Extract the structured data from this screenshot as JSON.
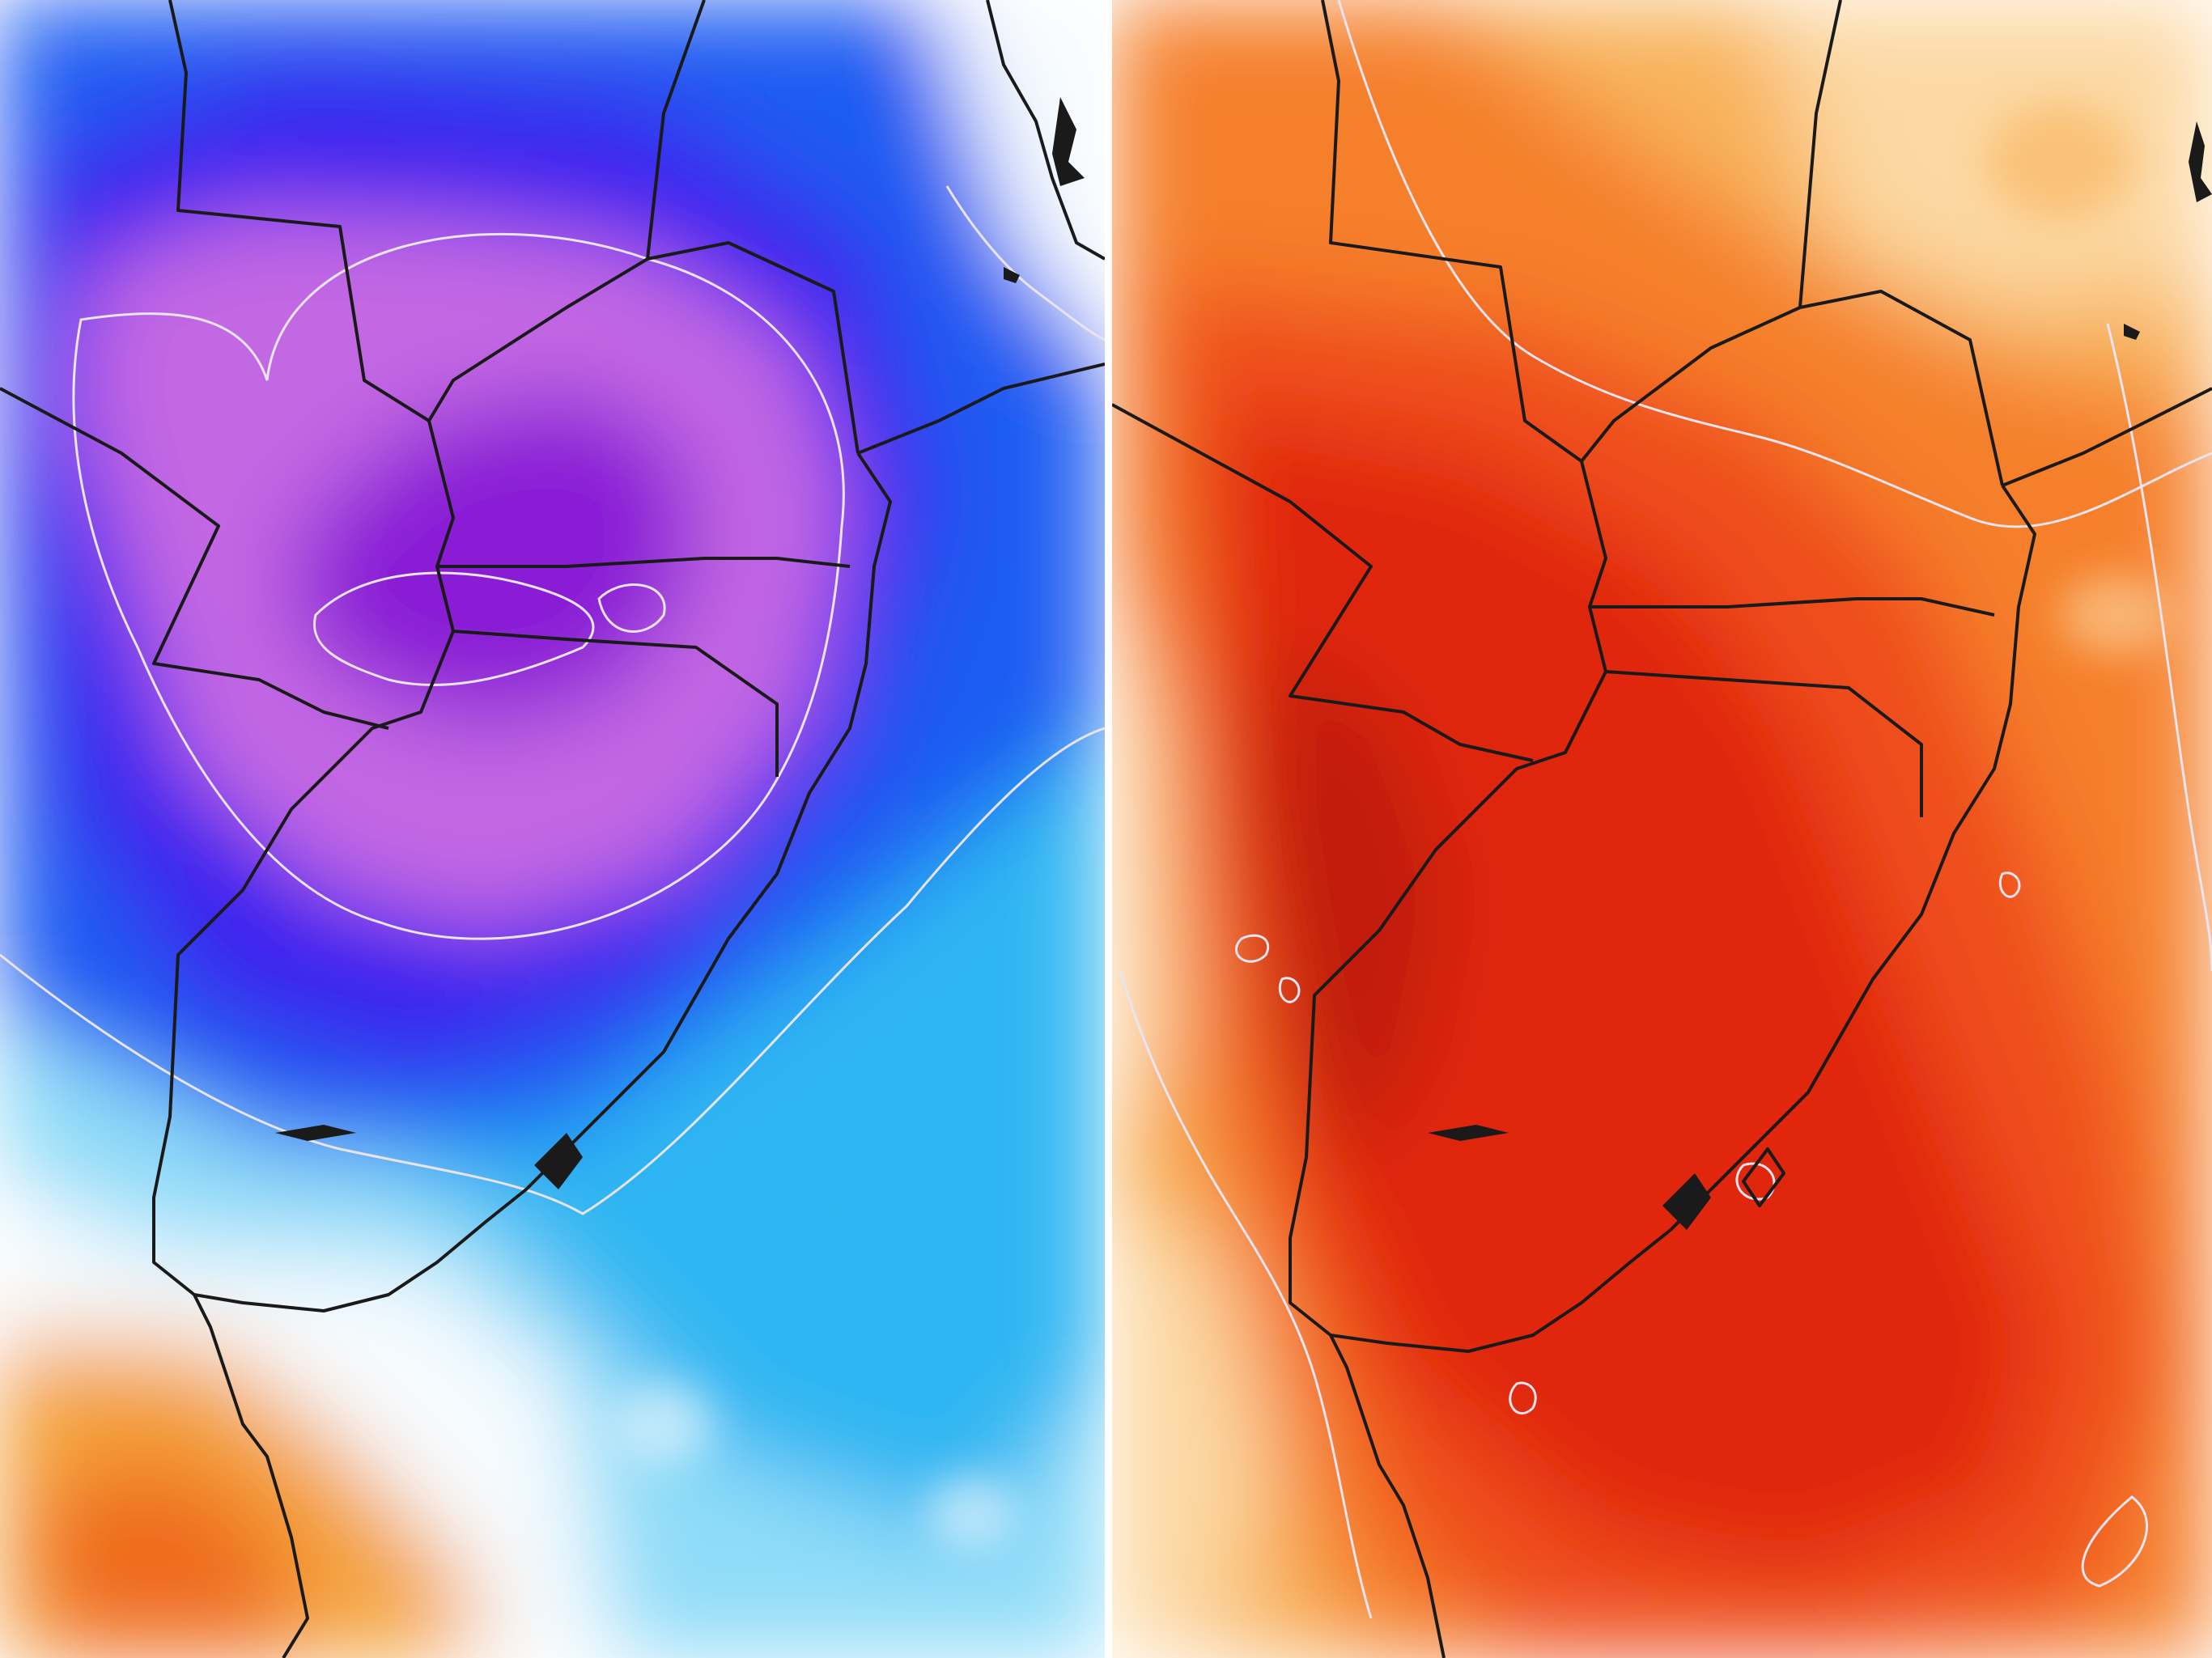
{
  "panels": [
    {
      "id": "left",
      "field": "temperature-anomaly-cold",
      "palette": {
        "deep_purple": "#8a1fd6",
        "violet": "#c368e3",
        "blue": "#3b22ee",
        "mid_blue": "#1a5cf2",
        "cyan": "#2fb6f2",
        "light_cyan": "#8fdcf8",
        "white": "#f6fbfe",
        "orange": "#f4a23a",
        "dark_orange": "#ef6a1c"
      }
    },
    {
      "id": "right",
      "field": "temperature-anomaly-warm",
      "palette": {
        "pale": "#fcd8a3",
        "light_orange": "#f8b25a",
        "orange": "#f57f2a",
        "red_orange": "#ef4e1a",
        "red": "#e0260f",
        "dark_red": "#c01a0c"
      }
    }
  ],
  "map": {
    "border_color": "#1a1a1a",
    "contour_color": "#e9e4ef"
  }
}
